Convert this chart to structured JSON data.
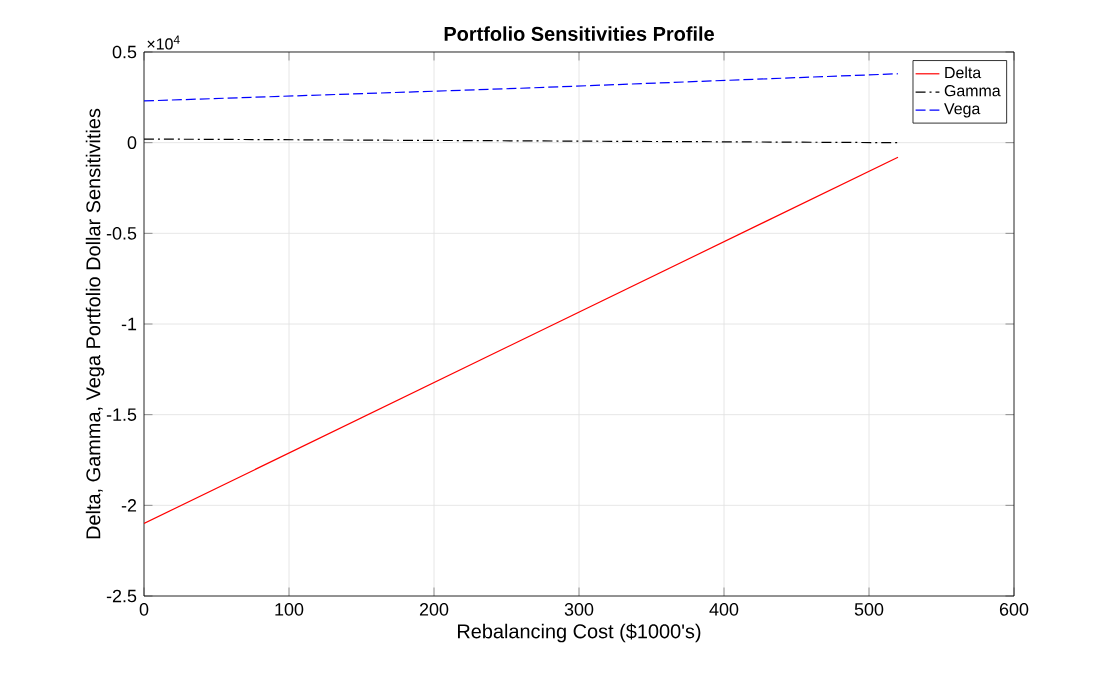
{
  "chart_data": {
    "type": "line",
    "title": "Portfolio Sensitivities Profile",
    "xlabel": "Rebalancing Cost ($1000's)",
    "ylabel": "Delta, Gamma, Vega Portfolio Dollar Sensitivities",
    "annotations": [
      "×10$^{4}$"
    ],
    "x": [
      0,
      260,
      520
    ],
    "series": [
      {
        "name": "Delta",
        "color": "#ff0000",
        "line_style": "solid",
        "values": [
          -2.1,
          -1.09,
          -0.08
        ]
      },
      {
        "name": "Gamma",
        "color": "#000000",
        "line_style": "dashdot",
        "values": [
          0.02,
          0.01,
          0.0
        ]
      },
      {
        "name": "Vega",
        "color": "#0000ff",
        "line_style": "dashed",
        "values": [
          0.23,
          0.3,
          0.38
        ]
      }
    ],
    "xlim": [
      0,
      600
    ],
    "xticks": [
      0,
      100,
      200,
      300,
      400,
      500,
      600
    ],
    "ylim": [
      -2.5,
      0.5
    ],
    "yticks": [
      {
        "value": -2.5,
        "label": "-2.5"
      },
      {
        "value": -2,
        "label": "-2"
      },
      {
        "value": -1.5,
        "label": "-1.5"
      },
      {
        "value": -1,
        "label": "-1"
      },
      {
        "value": -0.5,
        "label": "-0.5"
      },
      {
        "value": 0,
        "label": "0"
      },
      {
        "value": 0.5,
        "label": "0.5"
      }
    ],
    "grid": true,
    "legend": "top right"
  }
}
